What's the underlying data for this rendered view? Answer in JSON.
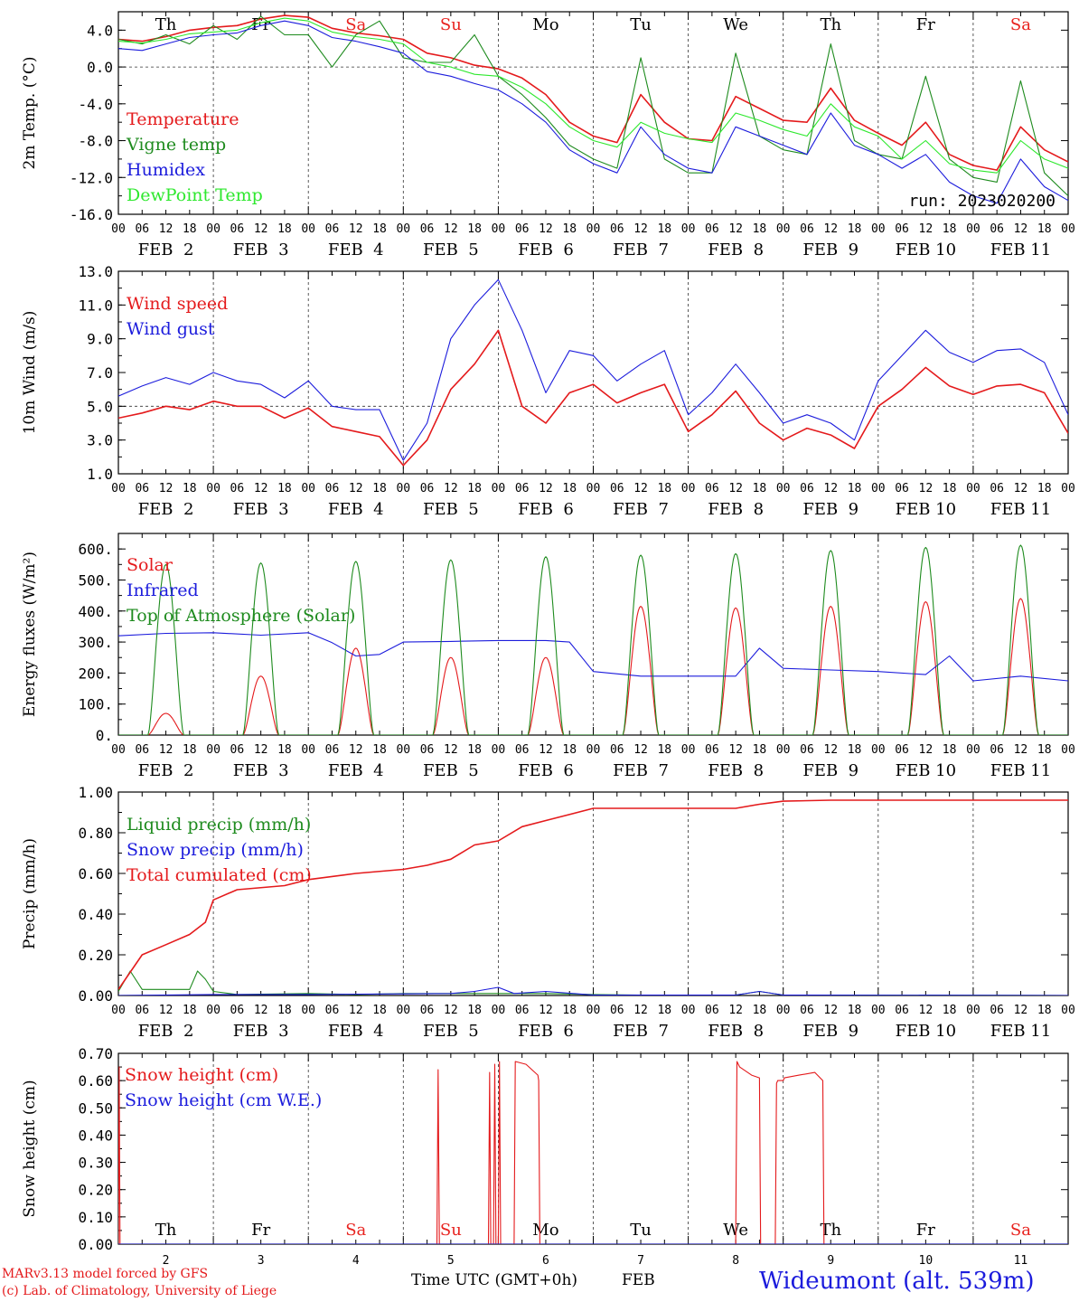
{
  "meteogram": {
    "station_label": "Wideumont (alt. 539m)",
    "run_label": "run: 2023020200",
    "credit_line1": "MARv3.13 model forced by GFS",
    "credit_line2": "(c) Lab. of Climatology, University of Liege",
    "time_axis_title": "Time UTC (GMT+0h)",
    "time_axis_month": "FEB",
    "hour_ticks": [
      "00",
      "06",
      "12",
      "18"
    ],
    "date_labels": [
      "FEB  2",
      "FEB  3",
      "FEB  4",
      "FEB  5",
      "FEB  6",
      "FEB  7",
      "FEB  8",
      "FEB  9",
      "FEB 10",
      "FEB 11"
    ],
    "day_names": [
      "Th",
      "Fr",
      "Sa",
      "Su",
      "Mo",
      "Tu",
      "We",
      "Th",
      "Fr",
      "Sa"
    ],
    "day_numbers": [
      "2",
      "3",
      "4",
      "5",
      "6",
      "7",
      "8",
      "9",
      "10",
      "11"
    ],
    "weekend_color": "#e8231f"
  },
  "colors": {
    "red": "#e41a1c",
    "green": "#1e8b1e",
    "blue": "#1c1cdc",
    "light_green": "#2ee82e",
    "black": "#000000"
  },
  "chart_data": [
    {
      "id": "temp",
      "type": "line",
      "ylabel": "2m Temp. (°C)",
      "ylim": [
        -16,
        6
      ],
      "yticks": [
        -16,
        -12,
        -8,
        -4,
        0,
        4
      ],
      "ytick_labels": [
        "-16.0",
        "-12.0",
        "-8.0",
        "-4.0",
        "0.0",
        "4.0"
      ],
      "ref_line": 0,
      "xlim_hours": [
        0,
        240
      ],
      "series": [
        {
          "name": "Temperature",
          "color": "#e41a1c",
          "x": [
            0,
            6,
            12,
            18,
            24,
            30,
            36,
            42,
            48,
            54,
            60,
            66,
            72,
            78,
            84,
            90,
            96,
            102,
            108,
            114,
            120,
            126,
            132,
            138,
            144,
            150,
            156,
            162,
            168,
            174,
            180,
            186,
            192,
            198,
            204,
            210,
            216,
            222,
            228,
            234,
            240
          ],
          "y": [
            3,
            2.8,
            3.3,
            4,
            4.3,
            4.5,
            5.2,
            5.6,
            5.4,
            4.2,
            3.7,
            3.4,
            3,
            1.5,
            1,
            0.2,
            -0.2,
            -1.2,
            -3,
            -6,
            -7.5,
            -8.2,
            -3,
            -6,
            -7.8,
            -8,
            -3.2,
            -4.5,
            -5.8,
            -6,
            -2.3,
            -5.8,
            -7.2,
            -8.5,
            -6,
            -9.5,
            -10.7,
            -11.2,
            -6.5,
            -9,
            -10.3
          ]
        },
        {
          "name": "Vigne temp",
          "color": "#1e8b1e",
          "x": [
            0,
            6,
            12,
            18,
            24,
            30,
            36,
            42,
            48,
            54,
            60,
            66,
            72,
            78,
            84,
            90,
            96,
            102,
            108,
            114,
            120,
            126,
            132,
            138,
            144,
            150,
            156,
            162,
            168,
            174,
            180,
            186,
            192,
            198,
            204,
            210,
            216,
            222,
            228,
            234,
            240
          ],
          "y": [
            3,
            2.5,
            3.5,
            2.5,
            4.5,
            3,
            5.5,
            3.5,
            3.5,
            0,
            3.5,
            5,
            1,
            0.5,
            0.5,
            3.5,
            -1,
            -3,
            -5.5,
            -8.5,
            -10,
            -11,
            1,
            -10,
            -11.5,
            -11.5,
            1.5,
            -7.5,
            -9,
            -9.5,
            2.5,
            -8,
            -9.5,
            -10,
            -1,
            -10,
            -12,
            -12.5,
            -1.5,
            -11.5,
            -14
          ]
        },
        {
          "name": "Humidex",
          "color": "#1c1cdc",
          "x": [
            0,
            6,
            12,
            18,
            24,
            30,
            36,
            42,
            48,
            54,
            60,
            66,
            72,
            78,
            84,
            90,
            96,
            102,
            108,
            114,
            120,
            126,
            132,
            138,
            144,
            150,
            156,
            162,
            168,
            174,
            180,
            186,
            192,
            198,
            204,
            210,
            216,
            222,
            228,
            234,
            240
          ],
          "y": [
            2,
            1.8,
            2.5,
            3.2,
            3.5,
            3.7,
            4.5,
            5,
            4.5,
            3.2,
            2.8,
            2.2,
            1.5,
            -0.5,
            -1,
            -1.8,
            -2.5,
            -4,
            -6,
            -9,
            -10.5,
            -11.5,
            -6.5,
            -9.5,
            -11,
            -11.5,
            -6.5,
            -7.5,
            -8.5,
            -9.5,
            -5,
            -8.5,
            -9.5,
            -11,
            -9.5,
            -12.5,
            -14,
            -14.8,
            -10,
            -13,
            -14.5
          ]
        },
        {
          "name": "DewPoint Temp",
          "color": "#2ee82e",
          "x": [
            0,
            6,
            12,
            18,
            24,
            30,
            36,
            42,
            48,
            54,
            60,
            66,
            72,
            78,
            84,
            90,
            96,
            102,
            108,
            114,
            120,
            126,
            132,
            138,
            144,
            150,
            156,
            162,
            168,
            174,
            180,
            186,
            192,
            198,
            204,
            210,
            216,
            222,
            228,
            234,
            240
          ],
          "y": [
            2.8,
            2.6,
            3,
            3.6,
            3.8,
            4,
            4.8,
            5.3,
            5,
            3.8,
            3.3,
            3,
            2.5,
            0.5,
            0,
            -0.8,
            -1,
            -2.2,
            -4,
            -6.5,
            -8,
            -8.7,
            -6,
            -7.2,
            -7.8,
            -8.2,
            -5,
            -5.8,
            -6.8,
            -7.5,
            -4,
            -6.5,
            -7.5,
            -10,
            -8,
            -10.5,
            -11.2,
            -11.5,
            -8,
            -10,
            -11
          ]
        }
      ],
      "legend": [
        "Temperature",
        "Vigne temp",
        "Humidex",
        "DewPoint Temp"
      ],
      "day_names_row": "top"
    },
    {
      "id": "wind",
      "type": "line",
      "ylabel": "10m Wind (m/s)",
      "ylim": [
        1,
        13
      ],
      "yticks": [
        1,
        3,
        5,
        7,
        9,
        11,
        13
      ],
      "ytick_labels": [
        "1.0",
        "3.0",
        "5.0",
        "7.0",
        "9.0",
        "11.0",
        "13.0"
      ],
      "ref_line": 5,
      "xlim_hours": [
        0,
        240
      ],
      "series": [
        {
          "name": "Wind speed",
          "color": "#e41a1c",
          "x": [
            0,
            6,
            12,
            18,
            24,
            30,
            36,
            42,
            48,
            54,
            60,
            66,
            72,
            78,
            84,
            90,
            96,
            102,
            108,
            114,
            120,
            126,
            132,
            138,
            144,
            150,
            156,
            162,
            168,
            174,
            180,
            186,
            192,
            198,
            204,
            210,
            216,
            222,
            228,
            234,
            240
          ],
          "y": [
            4.3,
            4.6,
            5,
            4.8,
            5.3,
            5,
            5,
            4.3,
            4.9,
            3.8,
            3.5,
            3.2,
            1.5,
            3,
            6,
            7.5,
            9.5,
            5,
            4,
            5.8,
            6.3,
            5.2,
            5.8,
            6.3,
            3.5,
            4.5,
            5.9,
            4,
            3,
            3.7,
            3.3,
            2.5,
            5,
            6,
            7.3,
            6.2,
            5.7,
            6.2,
            6.3,
            5.8,
            3.4
          ]
        },
        {
          "name": "Wind gust",
          "color": "#1c1cdc",
          "x": [
            0,
            6,
            12,
            18,
            24,
            30,
            36,
            42,
            48,
            54,
            60,
            66,
            72,
            78,
            84,
            90,
            96,
            102,
            108,
            114,
            120,
            126,
            132,
            138,
            144,
            150,
            156,
            162,
            168,
            174,
            180,
            186,
            192,
            198,
            204,
            210,
            216,
            222,
            228,
            234,
            240
          ],
          "y": [
            5.6,
            6.2,
            6.7,
            6.3,
            7,
            6.5,
            6.3,
            5.5,
            6.5,
            5,
            4.8,
            4.8,
            1.8,
            4,
            9,
            11,
            12.5,
            9.5,
            5.8,
            8.3,
            8,
            6.5,
            7.5,
            8.3,
            4.5,
            5.8,
            7.5,
            5.8,
            4,
            4.5,
            4,
            3,
            6.5,
            8,
            9.5,
            8.2,
            7.6,
            8.3,
            8.4,
            7.6,
            4.5
          ]
        }
      ],
      "legend": [
        "Wind speed",
        "Wind gust"
      ]
    },
    {
      "id": "energy",
      "type": "line",
      "ylabel": "Energy fluxes (W/m²)",
      "ylim": [
        0,
        650
      ],
      "yticks": [
        0,
        100,
        200,
        300,
        400,
        500,
        600
      ],
      "ytick_labels": [
        "0.",
        "100.",
        "200.",
        "300.",
        "400.",
        "500.",
        "600."
      ],
      "xlim_hours": [
        0,
        240
      ],
      "series": [
        {
          "name": "Solar",
          "color": "#e41a1c",
          "diurnal": true,
          "day_peaks": [
            70,
            190,
            280,
            250,
            250,
            415,
            410,
            415,
            430,
            440
          ]
        },
        {
          "name": "Infrared",
          "color": "#1c1cdc",
          "x": [
            0,
            12,
            24,
            36,
            48,
            54,
            60,
            66,
            72,
            84,
            96,
            108,
            114,
            120,
            132,
            144,
            156,
            162,
            168,
            180,
            192,
            204,
            210,
            216,
            228,
            240
          ],
          "y": [
            320,
            328,
            330,
            322,
            330,
            298,
            255,
            260,
            300,
            302,
            305,
            305,
            300,
            205,
            190,
            190,
            190,
            280,
            215,
            210,
            205,
            195,
            255,
            175,
            190,
            175
          ]
        },
        {
          "name": "Top of Atmosphere (Solar)",
          "color": "#1e8b1e",
          "diurnal": true,
          "day_peaks": [
            550,
            555,
            560,
            565,
            575,
            580,
            585,
            595,
            605,
            612
          ]
        }
      ],
      "legend": [
        "Solar",
        "Infrared",
        "Top of Atmosphere (Solar)"
      ]
    },
    {
      "id": "precip",
      "type": "line",
      "ylabel": "Precip (mm/h)",
      "ylim": [
        0,
        1
      ],
      "yticks": [
        0,
        0.2,
        0.4,
        0.6,
        0.8,
        1.0
      ],
      "ytick_labels": [
        "0.00",
        "0.20",
        "0.40",
        "0.60",
        "0.80",
        "1.00"
      ],
      "xlim_hours": [
        0,
        240
      ],
      "series": [
        {
          "name": "Liquid precip (mm/h)",
          "color": "#1e8b1e",
          "x": [
            0,
            3,
            6,
            12,
            18,
            20,
            22,
            24,
            30,
            48,
            60,
            72,
            84,
            96,
            108,
            120,
            132,
            156,
            162,
            168,
            240
          ],
          "y": [
            0.02,
            0.12,
            0.03,
            0.03,
            0.03,
            0.12,
            0.08,
            0.02,
            0.005,
            0.01,
            0.005,
            0.01,
            0.01,
            0.01,
            0.01,
            0.005,
            0.002,
            0.002,
            0.02,
            0.002,
            0
          ]
        },
        {
          "name": "Snow precip (mm/h)",
          "color": "#1c1cdc",
          "x": [
            0,
            24,
            48,
            72,
            84,
            90,
            96,
            100,
            108,
            120,
            156,
            162,
            168,
            240
          ],
          "y": [
            0,
            0.005,
            0.005,
            0.008,
            0.01,
            0.02,
            0.04,
            0.01,
            0.02,
            0.002,
            0.002,
            0.02,
            0.002,
            0
          ]
        },
        {
          "name": "Total cumulated (cm)",
          "color": "#e41a1c",
          "x": [
            0,
            6,
            12,
            18,
            22,
            24,
            30,
            42,
            48,
            60,
            72,
            78,
            84,
            90,
            96,
            102,
            108,
            120,
            132,
            144,
            156,
            162,
            168,
            180,
            192,
            204,
            216,
            228,
            240
          ],
          "y": [
            0.03,
            0.2,
            0.25,
            0.3,
            0.36,
            0.47,
            0.52,
            0.54,
            0.57,
            0.6,
            0.62,
            0.64,
            0.67,
            0.74,
            0.76,
            0.83,
            0.86,
            0.92,
            0.92,
            0.92,
            0.92,
            0.94,
            0.955,
            0.96,
            0.96,
            0.96,
            0.96,
            0.96,
            0.96
          ]
        }
      ],
      "legend": [
        "Liquid precip (mm/h)",
        "Snow precip (mm/h)",
        "Total cumulated (cm)"
      ]
    },
    {
      "id": "snow",
      "type": "line",
      "ylabel": "Snow height (cm)",
      "ylim": [
        0,
        0.7
      ],
      "yticks": [
        0,
        0.1,
        0.2,
        0.3,
        0.4,
        0.5,
        0.6,
        0.7
      ],
      "ytick_labels": [
        "0.00",
        "0.10",
        "0.20",
        "0.30",
        "0.40",
        "0.50",
        "0.60",
        "0.70"
      ],
      "xlim_hours": [
        0,
        240
      ],
      "series": [
        {
          "name": "Snow height (cm)",
          "color": "#e41a1c",
          "x": [
            0,
            0.2,
            0.4,
            80.5,
            80.8,
            81.1,
            93.5,
            93.8,
            94.1,
            94.8,
            95.1,
            95.4,
            96,
            96.3,
            96.6,
            100,
            100.3,
            103,
            106,
            106.2,
            106.5,
            156,
            156.3,
            157,
            160,
            162,
            162.3,
            162.6,
            166,
            166.3,
            166.6,
            168,
            168.3,
            172,
            176,
            178,
            178.3,
            240
          ],
          "y": [
            0,
            0.65,
            0,
            0,
            0.64,
            0,
            0,
            0.63,
            0,
            0,
            0.66,
            0,
            0,
            0.67,
            0,
            0,
            0.67,
            0.66,
            0.62,
            0.6,
            0,
            0,
            0.67,
            0.65,
            0.62,
            0.61,
            0,
            0,
            0,
            0.59,
            0.6,
            0.6,
            0.61,
            0.62,
            0.63,
            0.6,
            0,
            0
          ]
        },
        {
          "name": "Snow height (cm W.E.)",
          "color": "#1c1cdc",
          "x": [
            0,
            240
          ],
          "y": [
            0,
            0
          ]
        }
      ],
      "legend": [
        "Snow height (cm)",
        "Snow height (cm W.E.)"
      ],
      "day_names_row": "bottom"
    }
  ]
}
